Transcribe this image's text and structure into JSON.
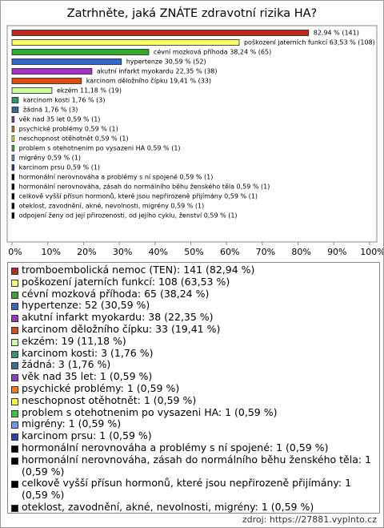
{
  "chart_data": {
    "type": "bar",
    "orientation": "horizontal",
    "title": "Zatrhněte, jaká ZNÁTE zdravotní rizika HA?",
    "categories": [
      "tromboembolická nemoc (TEN): 141 (82,94 %)",
      "poškození jaterních funkcí: 108 (63,53 %)",
      "cévní mozková příhoda: 65 (38,24 %)",
      "hypertenze: 52 (30,59 %)",
      "akutní infarkt myokardu: 38 (22,35 %)",
      "karcinom děložního čípku: 33 (19,41 %)",
      "ekzém: 19 (11,18 %)",
      "karcinom kosti: 3 (1,76 %)",
      "žádná: 3 (1,76 %)",
      "věk nad 35 let: 1 (0,59 %)",
      "psychické problémy: 1 (0,59 %)",
      "neschopnost otěhotnět: 1 (0,59 %)",
      "problem s otehotnenim po vysazeni HA: 1 (0,59 %)",
      "migrény: 1 (0,59 %)",
      "karcinom prsu: 1 (0,59 %)",
      "hormonální nerovnováha a problémy s ní spojené: 1 (0,59 %)",
      "hormonální nerovnováha, zásah do normálního běhu ženského těla: 1 (0,59 %)",
      "celkově vyšší přísun hormonů, které jsou nepřirozeně přijímány: 1 (0,59 %)",
      "oteklost, zavodnění, akné, nevolnosti, migrény: 1 (0,59 %)",
      "odpojení ženy od její přirozenosti, od jejího cyklu, ženství: 1 (0,59 %)"
    ],
    "values": [
      82.94,
      63.53,
      38.24,
      30.59,
      22.35,
      19.41,
      11.18,
      1.76,
      1.76,
      0.59,
      0.59,
      0.59,
      0.59,
      0.59,
      0.59,
      0.59,
      0.59,
      0.59,
      0.59,
      0.59
    ],
    "value_labels": [
      "82,94 % (141)",
      "poškození jaterních funkcí 63,53 % (108)",
      "cévní mozková příhoda 38,24 % (65)",
      "hypertenze 30,59 % (52)",
      "akutní infarkt myokardu 22,35 % (38)",
      "karcinom děložního čípku 19,41 % (33)",
      "ekzém 11,18 % (19)",
      "karcinom kosti 1,76 % (3)",
      "žádná 1,76 % (3)",
      "věk nad 35 let 0,59 % (1)",
      "psychické problémy 0,59 % (1)",
      "neschopnost otěhotnět 0,59 % (1)",
      "problem s otehotnenim po vysazeni HA 0,59 % (1)",
      "migrény 0,59 % (1)",
      "karcinom prsu 0,59 % (1)",
      "hormonální nerovnováha a problémy s ní spojené 0,59 % (1)",
      "hormonální nerovnováha, zásah do normálního běhu ženského těla 0,59 % (1)",
      "celkově vyšší přísun hormonů, které jsou nepřirozeně přijímány 0,59 % (1)",
      "oteklost, zavodnění, akné, nevolnosti, migrény 0,59 % (1)",
      "odpojení ženy od její přirozenosti, od jejího cyklu, ženství 0,59 % (1)"
    ],
    "colors": [
      "#c0281e",
      "#ffff66",
      "#2faa2f",
      "#3366cc",
      "#a52fc8",
      "#dd4a12",
      "#ccff99",
      "#2e9966",
      "#2e6e8e",
      "#8e3acc",
      "#ff7711",
      "#ffff22",
      "#33cc33",
      "#6699ff",
      "#2a3fbf",
      "#000000",
      "#000000",
      "#000000",
      "#000000",
      "#000000"
    ],
    "xlim": [
      0,
      100
    ],
    "xticks": [
      {
        "value": 0,
        "label": "0%"
      },
      {
        "value": 10,
        "label": "10%"
      },
      {
        "value": 20,
        "label": "20%"
      },
      {
        "value": 30,
        "label": "30%"
      },
      {
        "value": 40,
        "label": "40%"
      },
      {
        "value": 50,
        "label": "50%"
      },
      {
        "value": 60,
        "label": "60%"
      },
      {
        "value": 70,
        "label": "70%"
      },
      {
        "value": 80,
        "label": "80%"
      },
      {
        "value": 90,
        "label": "90%"
      },
      {
        "value": 100,
        "label": "100%"
      }
    ],
    "source": "zdroj: https://27881.vyplnto.cz"
  }
}
